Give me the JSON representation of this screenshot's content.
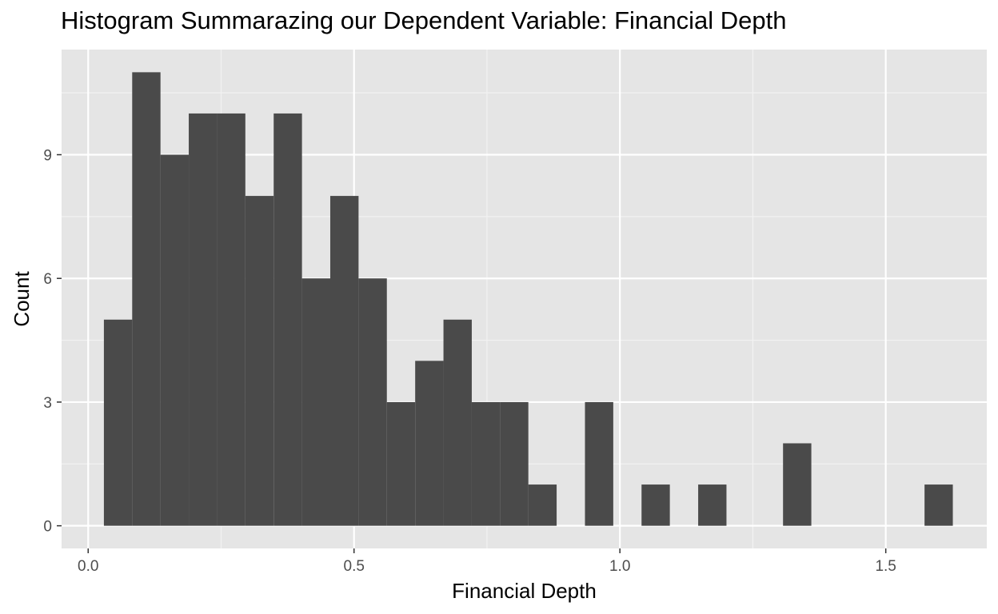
{
  "chart_data": {
    "type": "bar",
    "title": "Histogram Summarazing our Dependent Variable: Financial Depth",
    "xlabel": "Financial Depth",
    "ylabel": "Count",
    "xlim": [
      -0.05,
      1.69
    ],
    "ylim": [
      -0.55,
      11.55
    ],
    "x_ticks": [
      0.0,
      0.5,
      1.0,
      1.5
    ],
    "x_tick_labels": [
      "0.0",
      "0.5",
      "1.0",
      "1.5"
    ],
    "y_ticks": [
      0,
      3,
      6,
      9
    ],
    "y_tick_labels": [
      "0",
      "3",
      "6",
      "9"
    ],
    "grid": true,
    "bin_width": 0.05322,
    "bin_centers": [
      0.0562,
      0.1094,
      0.1626,
      0.2158,
      0.269,
      0.3222,
      0.3755,
      0.4287,
      0.4819,
      0.5351,
      0.5883,
      0.6416,
      0.6948,
      0.748,
      0.8012,
      0.8544,
      0.9077,
      0.9609,
      1.0141,
      1.0673,
      1.1205,
      1.1738,
      1.227,
      1.2802,
      1.3334,
      1.3866,
      1.4399,
      1.4931,
      1.5463,
      1.5995
    ],
    "values": [
      5,
      11,
      9,
      10,
      10,
      8,
      10,
      6,
      8,
      6,
      3,
      4,
      5,
      3,
      3,
      1,
      0,
      3,
      0,
      1,
      0,
      1,
      0,
      0,
      2,
      0,
      0,
      0,
      0,
      1
    ],
    "colors": {
      "bar": "#4a4a4a",
      "panel": "#e5e5e5",
      "grid_major": "#ffffff",
      "grid_minor": "#f2f2f2",
      "tick": "#333333"
    }
  }
}
